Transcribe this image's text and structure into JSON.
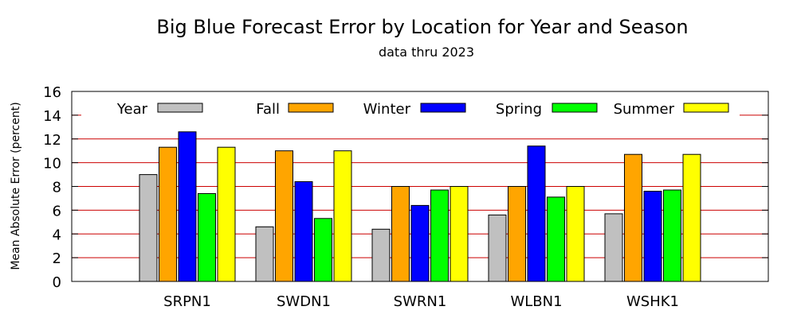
{
  "chart_data": {
    "type": "bar",
    "title": "Big Blue Forecast Error by Location for Year and Season",
    "subtitle": "data thru 2023",
    "xlabel": "",
    "ylabel": "Mean Absolute Error (percent)",
    "ylim": [
      0,
      16
    ],
    "yticks": [
      "0",
      "2",
      "4",
      "6",
      "8",
      "10",
      "12",
      "14",
      "16"
    ],
    "grid": true,
    "legend": "top",
    "categories": [
      "SRPN1",
      "SWDN1",
      "SWRN1",
      "WLBN1",
      "WSHK1"
    ],
    "series": [
      {
        "name": "Year",
        "color": "#c0c0c0",
        "values": [
          9.0,
          4.6,
          4.4,
          5.6,
          5.7
        ]
      },
      {
        "name": "Fall",
        "color": "#ffa500",
        "values": [
          11.3,
          11.0,
          8.0,
          8.0,
          10.7
        ]
      },
      {
        "name": "Winter",
        "color": "#0000ff",
        "values": [
          12.6,
          8.4,
          6.4,
          11.4,
          7.6
        ]
      },
      {
        "name": "Spring",
        "color": "#00ff00",
        "values": [
          7.4,
          5.3,
          7.7,
          7.1,
          7.7
        ]
      },
      {
        "name": "Summer",
        "color": "#ffff00",
        "values": [
          11.3,
          11.0,
          8.0,
          8.0,
          10.7
        ]
      }
    ],
    "gridline_color": "#cc0000"
  }
}
